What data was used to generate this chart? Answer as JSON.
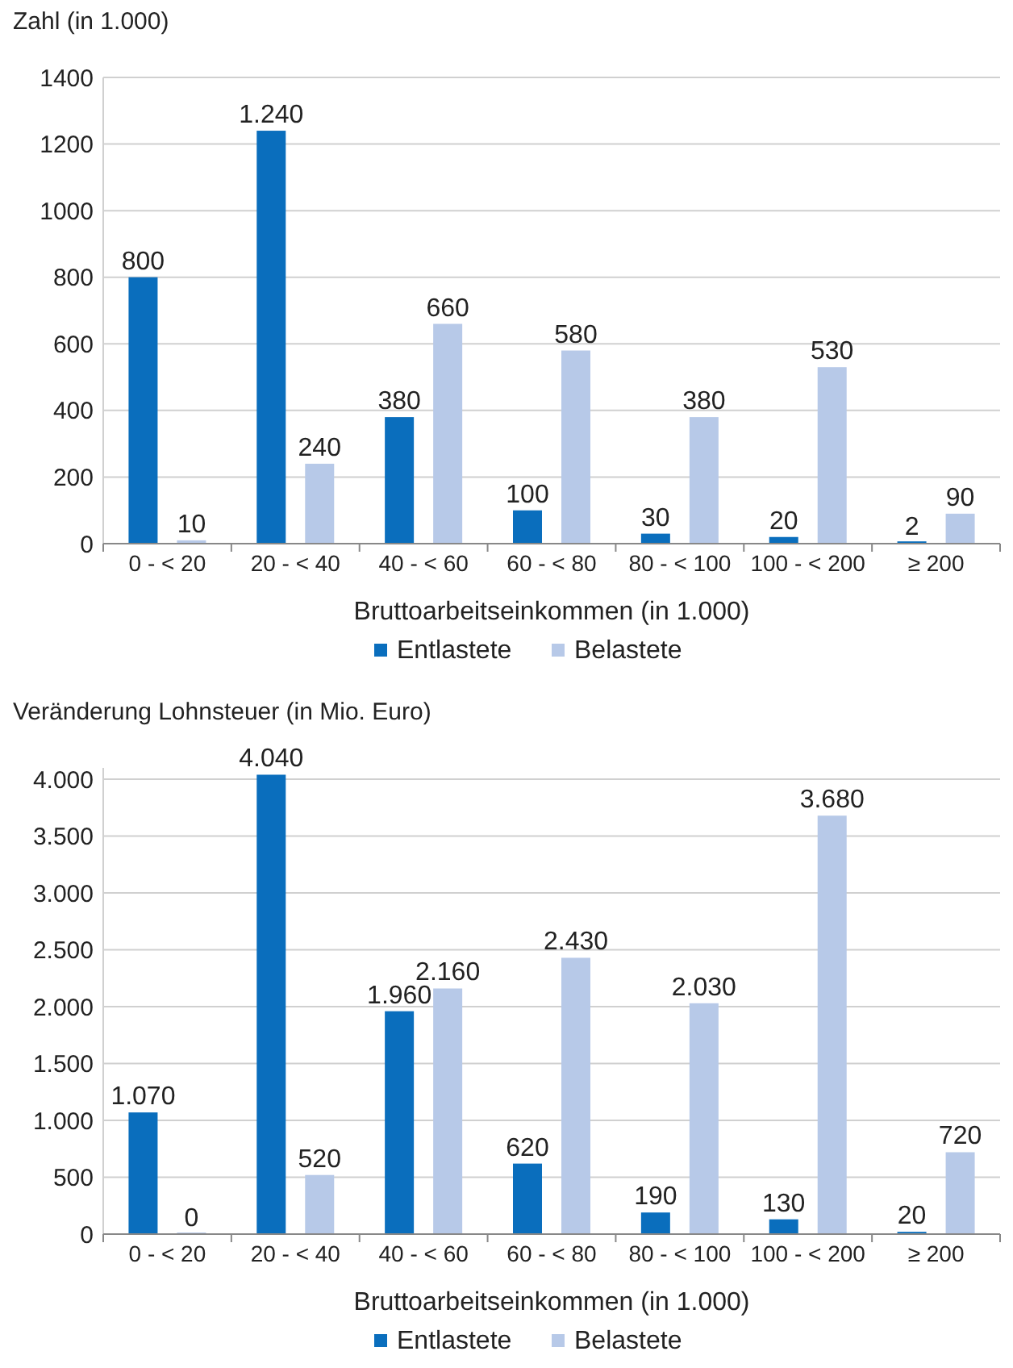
{
  "chart_data": [
    {
      "type": "bar",
      "ylabel": "Zahl (in 1.000)",
      "xlabel": "Bruttoarbeitseinkommen (in 1.000)",
      "categories": [
        "0 - < 20",
        "20 - < 40",
        "40 - < 60",
        "60 - < 80",
        "80 - < 100",
        "100 - < 200",
        "≥ 200"
      ],
      "ylim": [
        0,
        1400
      ],
      "yticks": [
        0,
        200,
        400,
        600,
        800,
        1000,
        1200,
        1400
      ],
      "grid": "y",
      "legend": "bottom",
      "series": [
        {
          "name": "Entlastete",
          "color": "#0a6ebd",
          "values": [
            800,
            1240,
            380,
            100,
            30,
            20,
            2
          ],
          "value_labels": [
            "800",
            "1.240",
            "380",
            "100",
            "30",
            "20",
            "2"
          ]
        },
        {
          "name": "Belastete",
          "color": "#b7c9e8",
          "values": [
            10,
            240,
            660,
            580,
            380,
            530,
            90
          ],
          "value_labels": [
            "10",
            "240",
            "660",
            "580",
            "380",
            "530",
            "90"
          ]
        }
      ]
    },
    {
      "type": "bar",
      "ylabel": "Veränderung Lohnsteuer (in Mio. Euro)",
      "xlabel": "Bruttoarbeitseinkommen (in 1.000)",
      "categories": [
        "0 - < 20",
        "20 - < 40",
        "40 - < 60",
        "60 - < 80",
        "80 - < 100",
        "100 - < 200",
        "≥ 200"
      ],
      "ylim": [
        0,
        4100
      ],
      "yticks": [
        0,
        500,
        {
          "value": 1000,
          "label": "1.000"
        },
        {
          "value": 1500,
          "label": "1.500"
        },
        {
          "value": 2000,
          "label": "2.000"
        },
        {
          "value": 2500,
          "label": "2.500"
        },
        {
          "value": 3000,
          "label": "3.000"
        },
        {
          "value": 3500,
          "label": "3.500"
        },
        {
          "value": 4000,
          "label": "4.000"
        }
      ],
      "grid": "y",
      "legend": "bottom",
      "series": [
        {
          "name": "Entlastete",
          "color": "#0a6ebd",
          "values": [
            1070,
            4040,
            1960,
            620,
            190,
            130,
            20
          ],
          "value_labels": [
            "1.070",
            "4.040",
            "1.960",
            "620",
            "190",
            "130",
            "20"
          ]
        },
        {
          "name": "Belastete",
          "color": "#b7c9e8",
          "values": [
            0,
            520,
            2160,
            2430,
            2030,
            3680,
            720
          ],
          "value_labels": [
            "0",
            "520",
            "2.160",
            "2.430",
            "2.030",
            "3.680",
            "720"
          ]
        }
      ]
    }
  ]
}
